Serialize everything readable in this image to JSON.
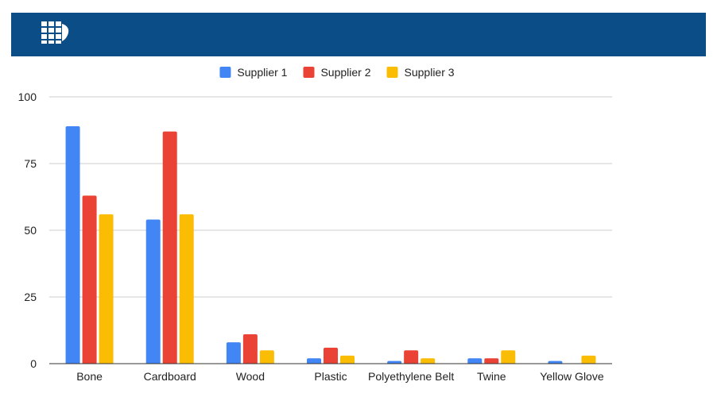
{
  "header": {
    "bg_color": "#0b4d87",
    "logo_icon": "logo-icon"
  },
  "chart_data": {
    "type": "bar",
    "categories": [
      "Bone",
      "Cardboard",
      "Wood",
      "Plastic",
      "Polyethylene Belt",
      "Twine",
      "Yellow Glove"
    ],
    "series": [
      {
        "name": "Supplier 1",
        "color": "#4285f4",
        "values": [
          89,
          54,
          8,
          2,
          1,
          2,
          1
        ]
      },
      {
        "name": "Supplier 2",
        "color": "#ea4335",
        "values": [
          63,
          87,
          11,
          6,
          5,
          2,
          0
        ]
      },
      {
        "name": "Supplier 3",
        "color": "#fbbc04",
        "values": [
          56,
          56,
          5,
          3,
          2,
          5,
          3
        ]
      }
    ],
    "ylim": [
      0,
      100
    ],
    "yticks": [
      "0",
      "25",
      "50",
      "75",
      "100"
    ],
    "grid": true,
    "legend_position": "top-center",
    "title": "",
    "xlabel": "",
    "ylabel": ""
  }
}
